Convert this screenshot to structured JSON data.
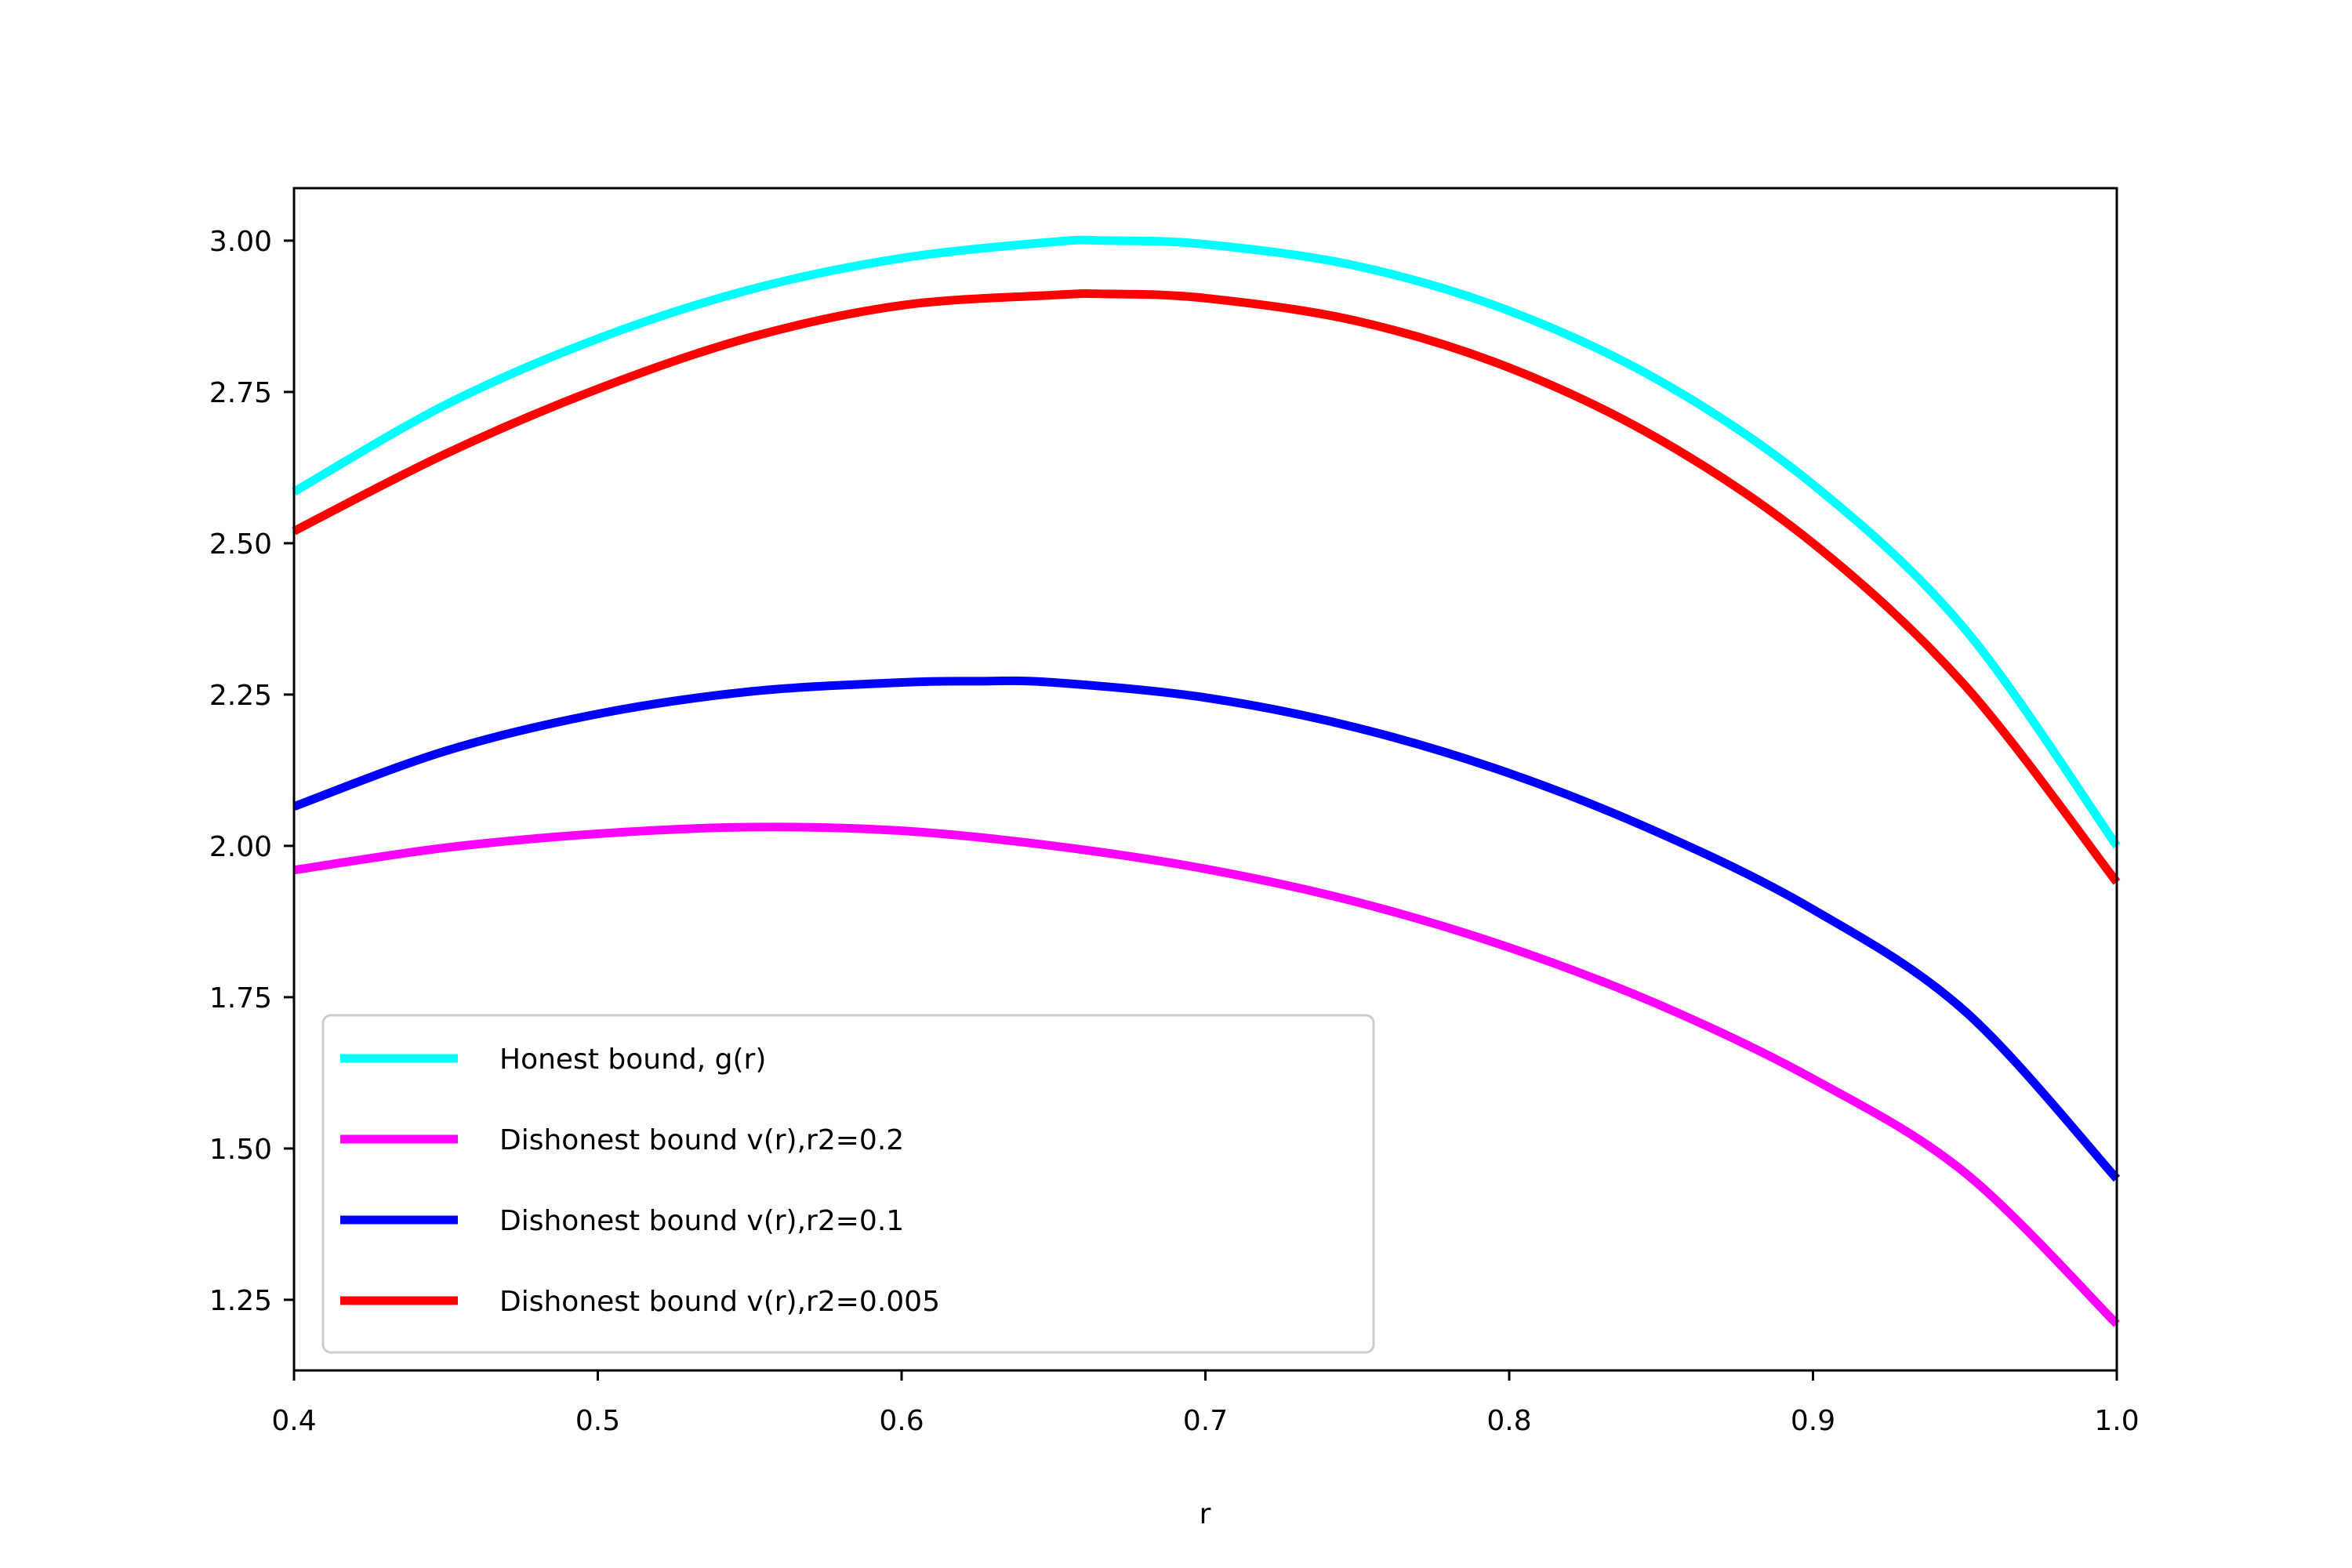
{
  "chart_data": {
    "type": "line",
    "title": "",
    "xlabel": "r",
    "ylabel": "",
    "xlim": [
      0.4,
      1.0
    ],
    "ylim": [
      1.1333,
      3.0867
    ],
    "xticks": [
      0.4,
      0.5,
      0.6,
      0.7,
      0.8,
      0.9,
      1.0
    ],
    "xtick_labels": [
      "0.4",
      "0.5",
      "0.6",
      "0.7",
      "0.8",
      "0.9",
      "1.0"
    ],
    "yticks": [
      1.25,
      1.5,
      1.75,
      2.0,
      2.25,
      2.5,
      2.75,
      3.0
    ],
    "ytick_labels": [
      "1.25",
      "1.50",
      "1.75",
      "2.00",
      "2.25",
      "2.50",
      "2.75",
      "3.00"
    ],
    "grid": false,
    "legend_position": "lower-left",
    "series": [
      {
        "name": "Honest bound, g(r)",
        "color": "#00ffff",
        "x": [
          0.4,
          0.45,
          0.5,
          0.55,
          0.6,
          0.65,
          0.667,
          0.7,
          0.75,
          0.8,
          0.85,
          0.9,
          0.95,
          1.0
        ],
        "y": [
          2.585,
          2.729,
          2.838,
          2.919,
          2.971,
          2.998,
          3.0,
          2.994,
          2.958,
          2.884,
          2.767,
          2.597,
          2.358,
          2.0
        ]
      },
      {
        "name": "Dishonest bound v(r),r2=0.2",
        "color": "#ff00ff",
        "x": [
          0.4,
          0.45,
          0.5,
          0.55,
          0.6,
          0.65,
          0.7,
          0.75,
          0.8,
          0.85,
          0.9,
          0.95,
          1.0
        ],
        "y": [
          1.96,
          1.997,
          2.02,
          2.031,
          2.025,
          2.0,
          1.962,
          1.907,
          1.832,
          1.736,
          1.615,
          1.46,
          1.21
        ]
      },
      {
        "name": "Dishonest bound v(r),r2=0.1",
        "color": "#0000ff",
        "x": [
          0.4,
          0.45,
          0.5,
          0.55,
          0.6,
          0.625,
          0.65,
          0.7,
          0.75,
          0.8,
          0.85,
          0.9,
          0.95,
          1.0
        ],
        "y": [
          2.065,
          2.157,
          2.218,
          2.255,
          2.27,
          2.272,
          2.27,
          2.245,
          2.195,
          2.12,
          2.02,
          1.895,
          1.727,
          1.45
        ]
      },
      {
        "name": "Dishonest bound v(r),r2=0.005",
        "color": "#ff0000",
        "x": [
          0.4,
          0.45,
          0.5,
          0.55,
          0.6,
          0.65,
          0.667,
          0.7,
          0.75,
          0.8,
          0.85,
          0.9,
          0.95,
          1.0
        ],
        "y": [
          2.52,
          2.648,
          2.755,
          2.84,
          2.893,
          2.91,
          2.912,
          2.905,
          2.867,
          2.79,
          2.67,
          2.5,
          2.265,
          1.94
        ]
      }
    ]
  }
}
